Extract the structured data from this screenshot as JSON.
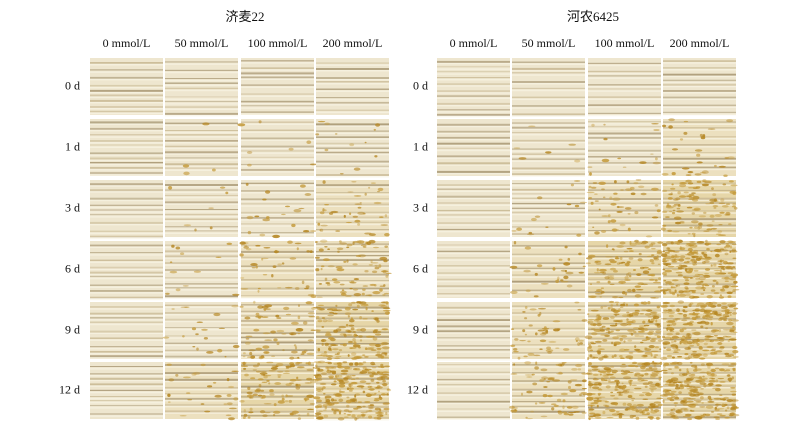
{
  "panels": [
    {
      "title": "济麦22",
      "columns": [
        "0 mmol/L",
        "50 mmol/L",
        "100 mmol/L",
        "200 mmol/L"
      ],
      "rows": [
        "0 d",
        "1 d",
        "3 d",
        "6 d",
        "9 d",
        "12 d"
      ]
    },
    {
      "title": "河农6425",
      "columns": [
        "0 mmol/L",
        "50 mmol/L",
        "100 mmol/L",
        "200 mmol/L"
      ],
      "rows": [
        "0 d",
        "1 d",
        "3 d",
        "6 d",
        "9 d",
        "12 d"
      ]
    }
  ]
}
